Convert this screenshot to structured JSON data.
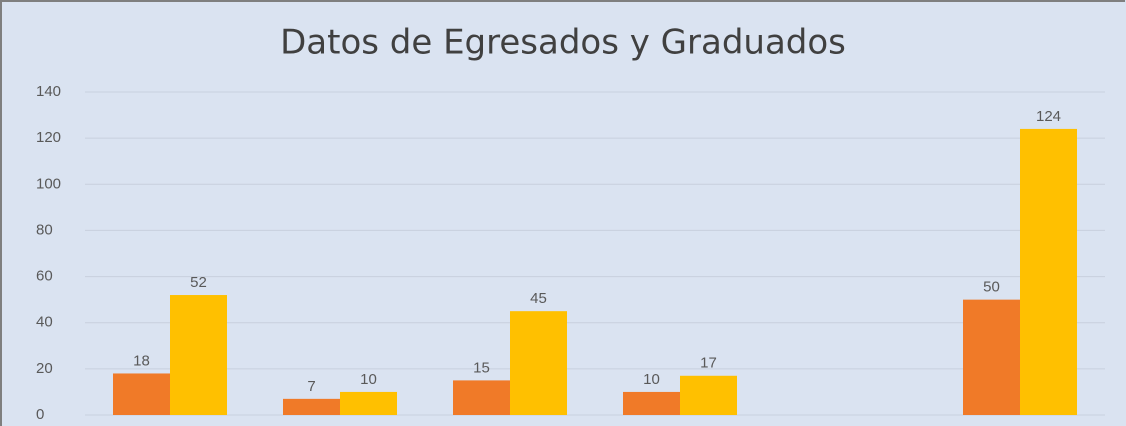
{
  "chart_data": {
    "type": "bar",
    "title": "Datos de Egresados y Graduados",
    "categories": [
      null,
      null,
      null,
      null,
      null,
      null
    ],
    "series": [
      {
        "color": "#f07a28",
        "values": [
          18,
          7,
          15,
          10,
          null,
          50
        ]
      },
      {
        "color": "#ffc000",
        "values": [
          52,
          10,
          45,
          17,
          null,
          124
        ]
      }
    ],
    "ylim": [
      0,
      140
    ],
    "yticks": [
      0,
      20,
      40,
      60,
      80,
      100,
      120,
      140
    ],
    "grid": true
  }
}
